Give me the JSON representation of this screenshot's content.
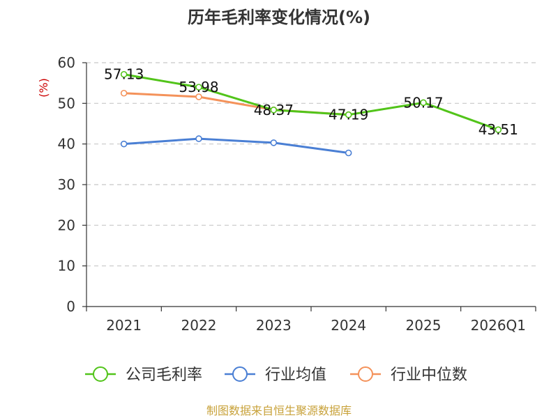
{
  "chart_data": {
    "type": "line",
    "title": "历年毛利率变化情况(%)",
    "ylabel": "(%)",
    "xlabel": "",
    "categories": [
      "2021",
      "2022",
      "2023",
      "2024",
      "2025",
      "2026Q1"
    ],
    "ylim": [
      0,
      60
    ],
    "yticks": [
      0,
      10,
      20,
      30,
      40,
      50,
      60
    ],
    "grid": true,
    "legend_position": "bottom",
    "series": [
      {
        "name": "公司毛利率",
        "color": "#52c41a",
        "values": [
          57.13,
          53.98,
          48.37,
          47.19,
          50.17,
          43.51
        ],
        "labels": [
          "57.13",
          "53.98",
          "48.37",
          "47.19",
          "50.17",
          "43.51"
        ]
      },
      {
        "name": "行业均值",
        "color": "#4a7fd4",
        "values": [
          40.0,
          41.3,
          40.3,
          37.8,
          null,
          null
        ]
      },
      {
        "name": "行业中位数",
        "color": "#f4925a",
        "values": [
          52.5,
          51.6,
          48.4,
          47.2,
          null,
          null
        ]
      }
    ],
    "source": "制图数据来自恒生聚源数据库"
  }
}
